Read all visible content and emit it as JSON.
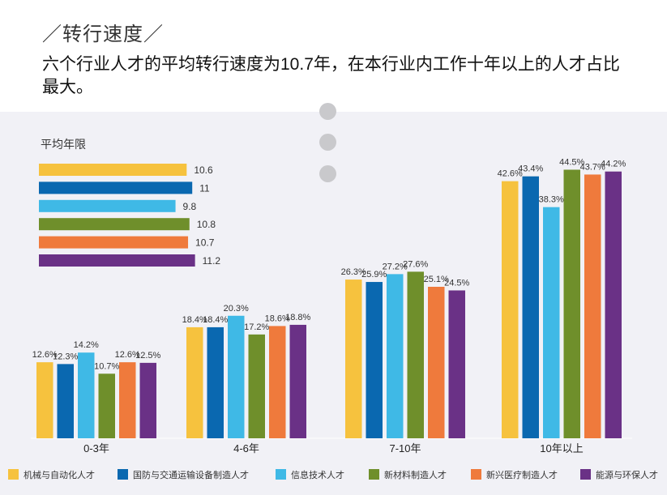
{
  "header": {
    "section_title": "／转行速度／",
    "headline": "六个行业人才的平均转行速度为10.7年，在本行业内工作十年以上的人才占比最大。"
  },
  "colors": {
    "series": [
      "#f6c23e",
      "#0a68b0",
      "#3fb9e6",
      "#6f8f2b",
      "#ef7a3c",
      "#6a3186"
    ],
    "panel_background": "#f1f1f6",
    "decor_dots": "#c9c9cc"
  },
  "chart_data": [
    {
      "type": "bar",
      "orientation": "horizontal",
      "title": "平均年限",
      "categories": [
        "机械与自动化人才",
        "国防与交通运输设备制造人才",
        "信息技术人才",
        "新材料制造人才",
        "新兴医疗制造人才",
        "能源与环保人才"
      ],
      "values": [
        10.6,
        11,
        9.8,
        10.8,
        10.7,
        11.2
      ],
      "value_labels": [
        "10.6",
        "11",
        "9.8",
        "10.8",
        "10.7",
        "11.2"
      ],
      "grid": false
    },
    {
      "type": "bar",
      "orientation": "vertical",
      "categories": [
        "0-3年",
        "4-6年",
        "7-10年",
        "10年以上"
      ],
      "series": [
        {
          "name": "机械与自动化人才",
          "values": [
            12.6,
            18.4,
            26.3,
            42.6
          ],
          "labels": [
            "12.6%",
            "18.4%",
            "26.3%",
            "42.6%"
          ]
        },
        {
          "name": "国防与交通运输设备制造人才",
          "values": [
            12.3,
            18.4,
            25.9,
            43.4
          ],
          "labels": [
            "12.3%",
            "18.4%",
            "25.9%",
            "43.4%"
          ]
        },
        {
          "name": "信息技术人才",
          "values": [
            14.2,
            20.3,
            27.2,
            38.3
          ],
          "labels": [
            "14.2%",
            "20.3%",
            "27.2%",
            "38.3%"
          ]
        },
        {
          "name": "新材料制造人才",
          "values": [
            10.7,
            17.2,
            27.6,
            44.5
          ],
          "labels": [
            "10.7%",
            "17.2%",
            "27.6%",
            "44.5%"
          ]
        },
        {
          "name": "新兴医疗制造人才",
          "values": [
            12.6,
            18.6,
            25.1,
            43.7
          ],
          "labels": [
            "12.6%",
            "18.6%",
            "25.1%",
            "43.7%"
          ]
        },
        {
          "name": "能源与环保人才",
          "values": [
            12.5,
            18.8,
            24.5,
            44.2
          ],
          "labels": [
            "12.5%",
            "18.8%",
            "24.5%",
            "44.2%"
          ]
        }
      ],
      "legend_position": "bottom",
      "grid": false
    }
  ]
}
